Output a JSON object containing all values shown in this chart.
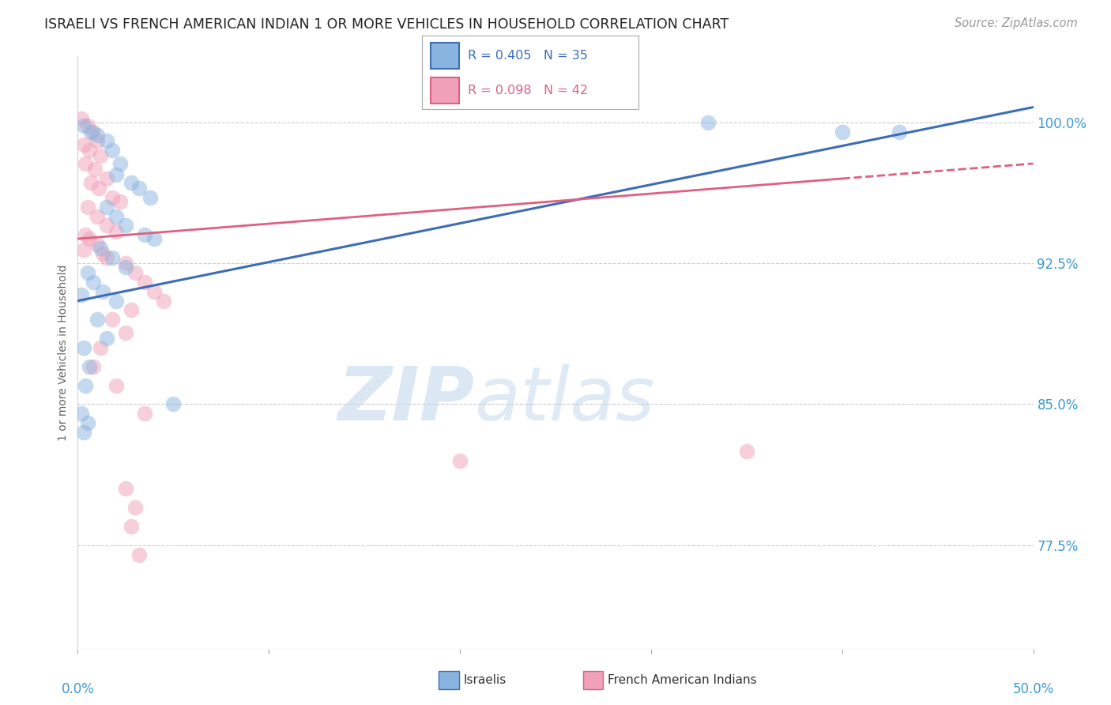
{
  "title": "ISRAELI VS FRENCH AMERICAN INDIAN 1 OR MORE VEHICLES IN HOUSEHOLD CORRELATION CHART",
  "source": "Source: ZipAtlas.com",
  "ylabel": "1 or more Vehicles in Household",
  "yticks": [
    77.5,
    85.0,
    92.5,
    100.0
  ],
  "xlim": [
    0.0,
    50.0
  ],
  "ylim": [
    72.0,
    103.5
  ],
  "watermark_zip": "ZIP",
  "watermark_atlas": "atlas",
  "legend_entries": [
    {
      "label": "R = 0.405   N = 35",
      "color": "#4d8bc9"
    },
    {
      "label": "R = 0.098   N = 42",
      "color": "#e07090"
    }
  ],
  "legend_labels": [
    "Israelis",
    "French American Indians"
  ],
  "israeli_color": "#8ab4e0",
  "french_color": "#f0a0b8",
  "israeli_line": {
    "x": [
      0.0,
      50.0
    ],
    "y": [
      90.5,
      100.8
    ]
  },
  "french_line_solid": {
    "x": [
      0.0,
      40.0
    ],
    "y": [
      93.8,
      97.0
    ]
  },
  "french_line_dashed": {
    "x": [
      40.0,
      50.0
    ],
    "y": [
      97.0,
      97.8
    ]
  },
  "blue_line_color": "#3d6db5",
  "pink_line_color": "#e06080",
  "grid_color": "#cccccc",
  "ytick_color": "#3d9ad1",
  "xtick_color": "#3d9ad1",
  "title_color": "#222222",
  "source_color": "#999999",
  "israeli_points": [
    [
      0.3,
      99.8
    ],
    [
      0.7,
      99.5
    ],
    [
      1.0,
      99.3
    ],
    [
      1.5,
      99.0
    ],
    [
      1.8,
      98.5
    ],
    [
      2.2,
      97.8
    ],
    [
      2.0,
      97.2
    ],
    [
      2.8,
      96.8
    ],
    [
      3.2,
      96.5
    ],
    [
      3.8,
      96.0
    ],
    [
      1.5,
      95.5
    ],
    [
      2.0,
      95.0
    ],
    [
      2.5,
      94.5
    ],
    [
      3.5,
      94.0
    ],
    [
      4.0,
      93.8
    ],
    [
      1.2,
      93.3
    ],
    [
      1.8,
      92.8
    ],
    [
      2.5,
      92.3
    ],
    [
      0.5,
      92.0
    ],
    [
      0.8,
      91.5
    ],
    [
      1.3,
      91.0
    ],
    [
      2.0,
      90.5
    ],
    [
      1.0,
      89.5
    ],
    [
      1.5,
      88.5
    ],
    [
      0.3,
      88.0
    ],
    [
      0.6,
      87.0
    ],
    [
      0.4,
      86.0
    ],
    [
      5.0,
      85.0
    ],
    [
      0.2,
      84.5
    ],
    [
      0.5,
      84.0
    ],
    [
      0.3,
      83.5
    ],
    [
      0.2,
      90.8
    ],
    [
      33.0,
      100.0
    ],
    [
      40.0,
      99.5
    ],
    [
      43.0,
      99.5
    ]
  ],
  "french_points": [
    [
      0.2,
      100.2
    ],
    [
      0.5,
      99.8
    ],
    [
      0.8,
      99.5
    ],
    [
      1.0,
      99.0
    ],
    [
      0.3,
      98.8
    ],
    [
      0.6,
      98.5
    ],
    [
      1.2,
      98.2
    ],
    [
      0.4,
      97.8
    ],
    [
      0.9,
      97.5
    ],
    [
      1.5,
      97.0
    ],
    [
      0.7,
      96.8
    ],
    [
      1.1,
      96.5
    ],
    [
      1.8,
      96.0
    ],
    [
      2.2,
      95.8
    ],
    [
      0.5,
      95.5
    ],
    [
      1.0,
      95.0
    ],
    [
      1.5,
      94.5
    ],
    [
      2.0,
      94.2
    ],
    [
      0.6,
      93.8
    ],
    [
      1.0,
      93.5
    ],
    [
      0.3,
      93.2
    ],
    [
      1.5,
      92.8
    ],
    [
      2.5,
      92.5
    ],
    [
      3.0,
      92.0
    ],
    [
      3.5,
      91.5
    ],
    [
      4.0,
      91.0
    ],
    [
      4.5,
      90.5
    ],
    [
      2.8,
      90.0
    ],
    [
      1.8,
      89.5
    ],
    [
      2.5,
      88.8
    ],
    [
      1.2,
      88.0
    ],
    [
      0.8,
      87.0
    ],
    [
      2.0,
      86.0
    ],
    [
      3.5,
      84.5
    ],
    [
      20.0,
      82.0
    ],
    [
      35.0,
      82.5
    ],
    [
      2.5,
      80.5
    ],
    [
      3.0,
      79.5
    ],
    [
      2.8,
      78.5
    ],
    [
      3.2,
      77.0
    ],
    [
      0.4,
      94.0
    ],
    [
      1.3,
      93.0
    ]
  ]
}
